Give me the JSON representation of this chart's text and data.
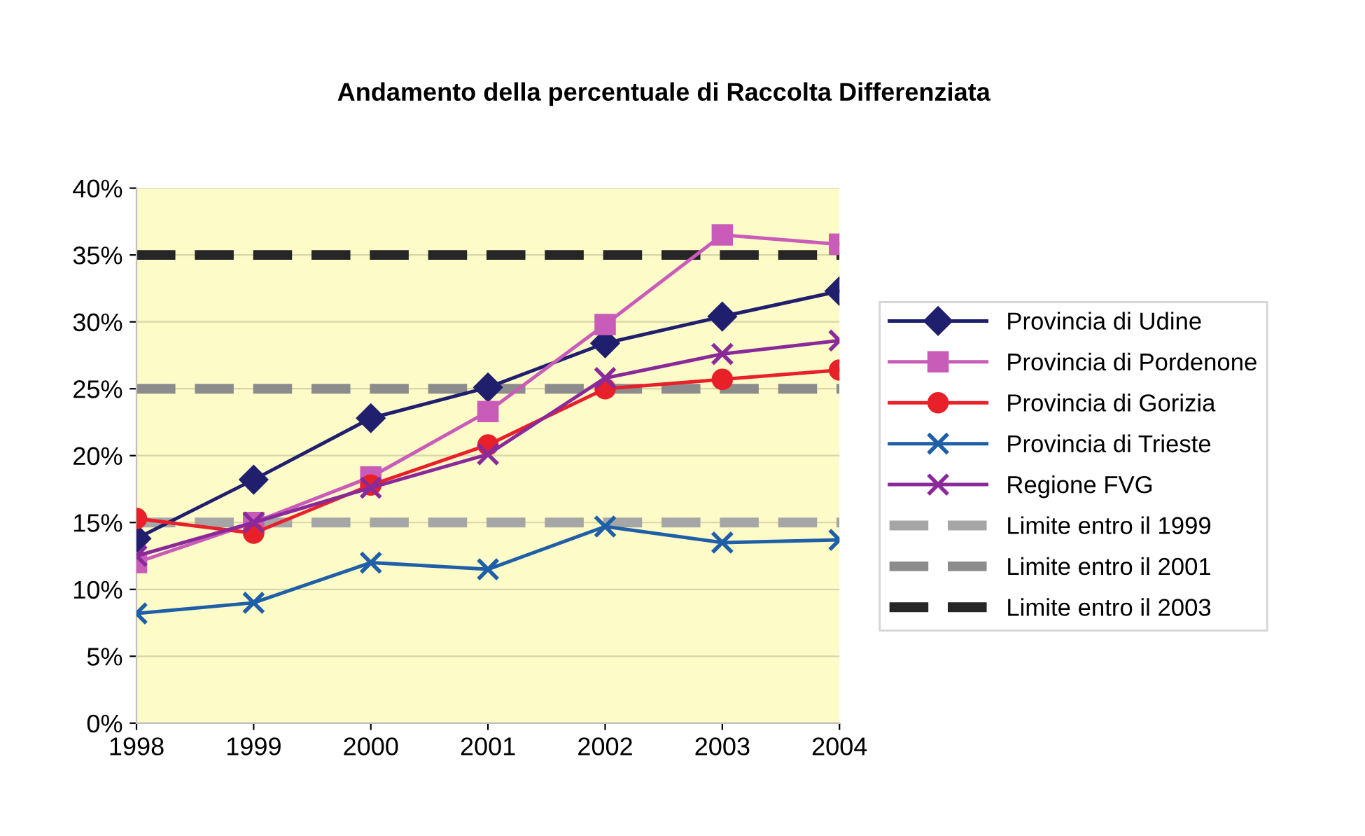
{
  "chart_data": {
    "type": "line",
    "title": "Andamento della percentuale di Raccolta Differenziata",
    "categories": [
      "1998",
      "1999",
      "2000",
      "2001",
      "2002",
      "2003",
      "2004"
    ],
    "series": [
      {
        "name": "Provincia di Udine",
        "color": "#1f1f6e",
        "marker": "diamond",
        "line_style": "solid",
        "values": [
          13.8,
          18.2,
          22.8,
          25.1,
          28.4,
          30.4,
          32.3
        ]
      },
      {
        "name": "Provincia di Pordenone",
        "color": "#c95cb8",
        "marker": "square",
        "line_style": "solid",
        "values": [
          12.0,
          15.0,
          18.4,
          23.3,
          29.8,
          36.5,
          35.8
        ]
      },
      {
        "name": "Provincia di Gorizia",
        "color": "#e8202a",
        "marker": "circle",
        "line_style": "solid",
        "values": [
          15.3,
          14.2,
          17.8,
          20.8,
          25.0,
          25.7,
          26.4
        ]
      },
      {
        "name": "Provincia di Trieste",
        "color": "#1f5fa8",
        "marker": "cross",
        "line_style": "solid",
        "values": [
          8.2,
          9.0,
          12.0,
          11.5,
          14.7,
          13.5,
          13.7
        ]
      },
      {
        "name": "Regione FVG",
        "color": "#8a2a9a",
        "marker": "cross",
        "line_style": "solid",
        "values": [
          12.5,
          15.0,
          17.6,
          20.1,
          25.8,
          27.6,
          28.6
        ]
      },
      {
        "name": "Limite entro il 1999",
        "color": "#a6a6a6",
        "marker": "none",
        "line_style": "dashed",
        "values": [
          15,
          15,
          15,
          15,
          15,
          15,
          15
        ]
      },
      {
        "name": "Limite entro il 2001",
        "color": "#8c8c8c",
        "marker": "none",
        "line_style": "dashed",
        "values": [
          25,
          25,
          25,
          25,
          25,
          25,
          25
        ]
      },
      {
        "name": "Limite entro il 2003",
        "color": "#262626",
        "marker": "none",
        "line_style": "dashed",
        "values": [
          35,
          35,
          35,
          35,
          35,
          35,
          35
        ]
      }
    ],
    "ylim": [
      0,
      40
    ],
    "yticks": [
      {
        "value": 0,
        "label": "0%"
      },
      {
        "value": 5,
        "label": "5%"
      },
      {
        "value": 10,
        "label": "10%"
      },
      {
        "value": 15,
        "label": "15%"
      },
      {
        "value": 20,
        "label": "20%"
      },
      {
        "value": 25,
        "label": "25%"
      },
      {
        "value": 30,
        "label": "30%"
      },
      {
        "value": 35,
        "label": "35%"
      },
      {
        "value": 40,
        "label": "40%"
      }
    ],
    "grid": "y",
    "legend": "right"
  }
}
